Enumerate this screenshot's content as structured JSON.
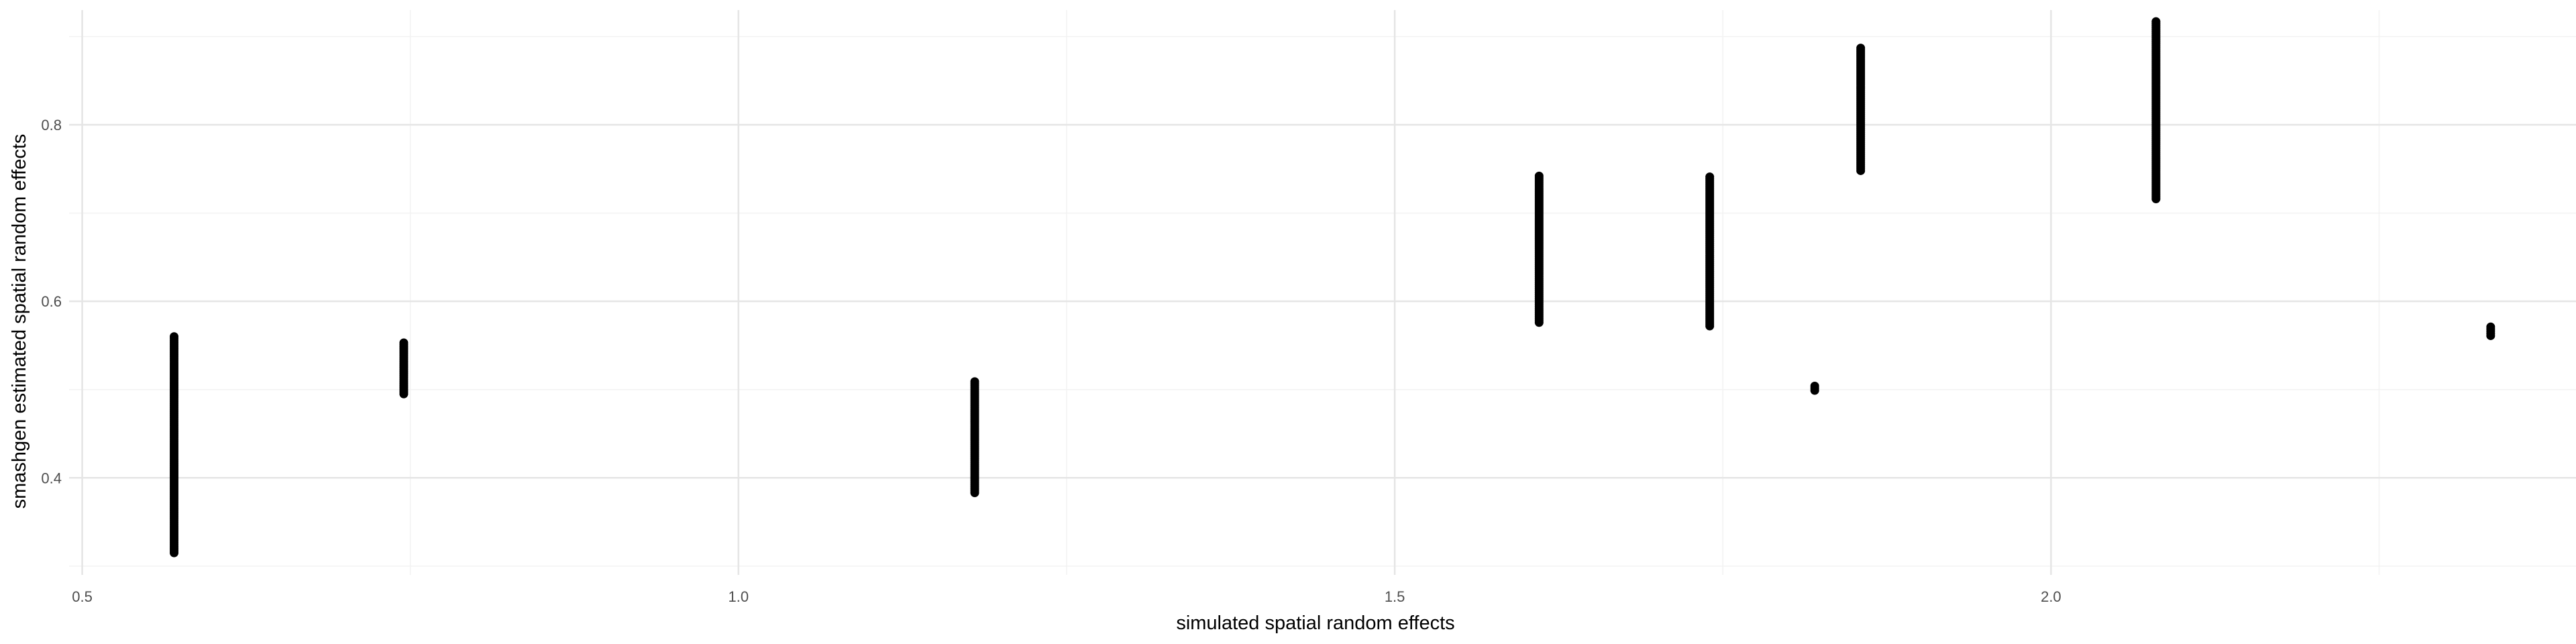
{
  "chart_data": {
    "type": "scatter",
    "title": "",
    "xlabel": "simulated spatial random effects",
    "ylabel": "smashgen estimated spatial random effects",
    "xlim": [
      0.49,
      2.4
    ],
    "ylim": [
      0.29,
      0.93
    ],
    "x_ticks": [
      0.5,
      1.0,
      1.5,
      2.0
    ],
    "x_tick_labels": [
      "0.5",
      "1.0",
      "1.5",
      "2.0"
    ],
    "y_ticks": [
      0.4,
      0.6,
      0.8
    ],
    "y_tick_labels": [
      "0.4",
      "0.6",
      "0.8"
    ],
    "grid": true,
    "legend": "none",
    "point_color": "#000000",
    "groups": [
      {
        "x": 0.57,
        "y_min": 0.315,
        "y_max": 0.56
      },
      {
        "x": 0.745,
        "y_min": 0.495,
        "y_max": 0.553
      },
      {
        "x": 1.18,
        "y_min": 0.383,
        "y_max": 0.509
      },
      {
        "x": 1.61,
        "y_min": 0.576,
        "y_max": 0.742
      },
      {
        "x": 1.74,
        "y_min": 0.572,
        "y_max": 0.741
      },
      {
        "x": 1.82,
        "y_min": 0.499,
        "y_max": 0.504
      },
      {
        "x": 1.855,
        "y_min": 0.748,
        "y_max": 0.887
      },
      {
        "x": 2.08,
        "y_min": 0.716,
        "y_max": 0.917
      },
      {
        "x": 2.335,
        "y_min": 0.561,
        "y_max": 0.571
      }
    ]
  }
}
